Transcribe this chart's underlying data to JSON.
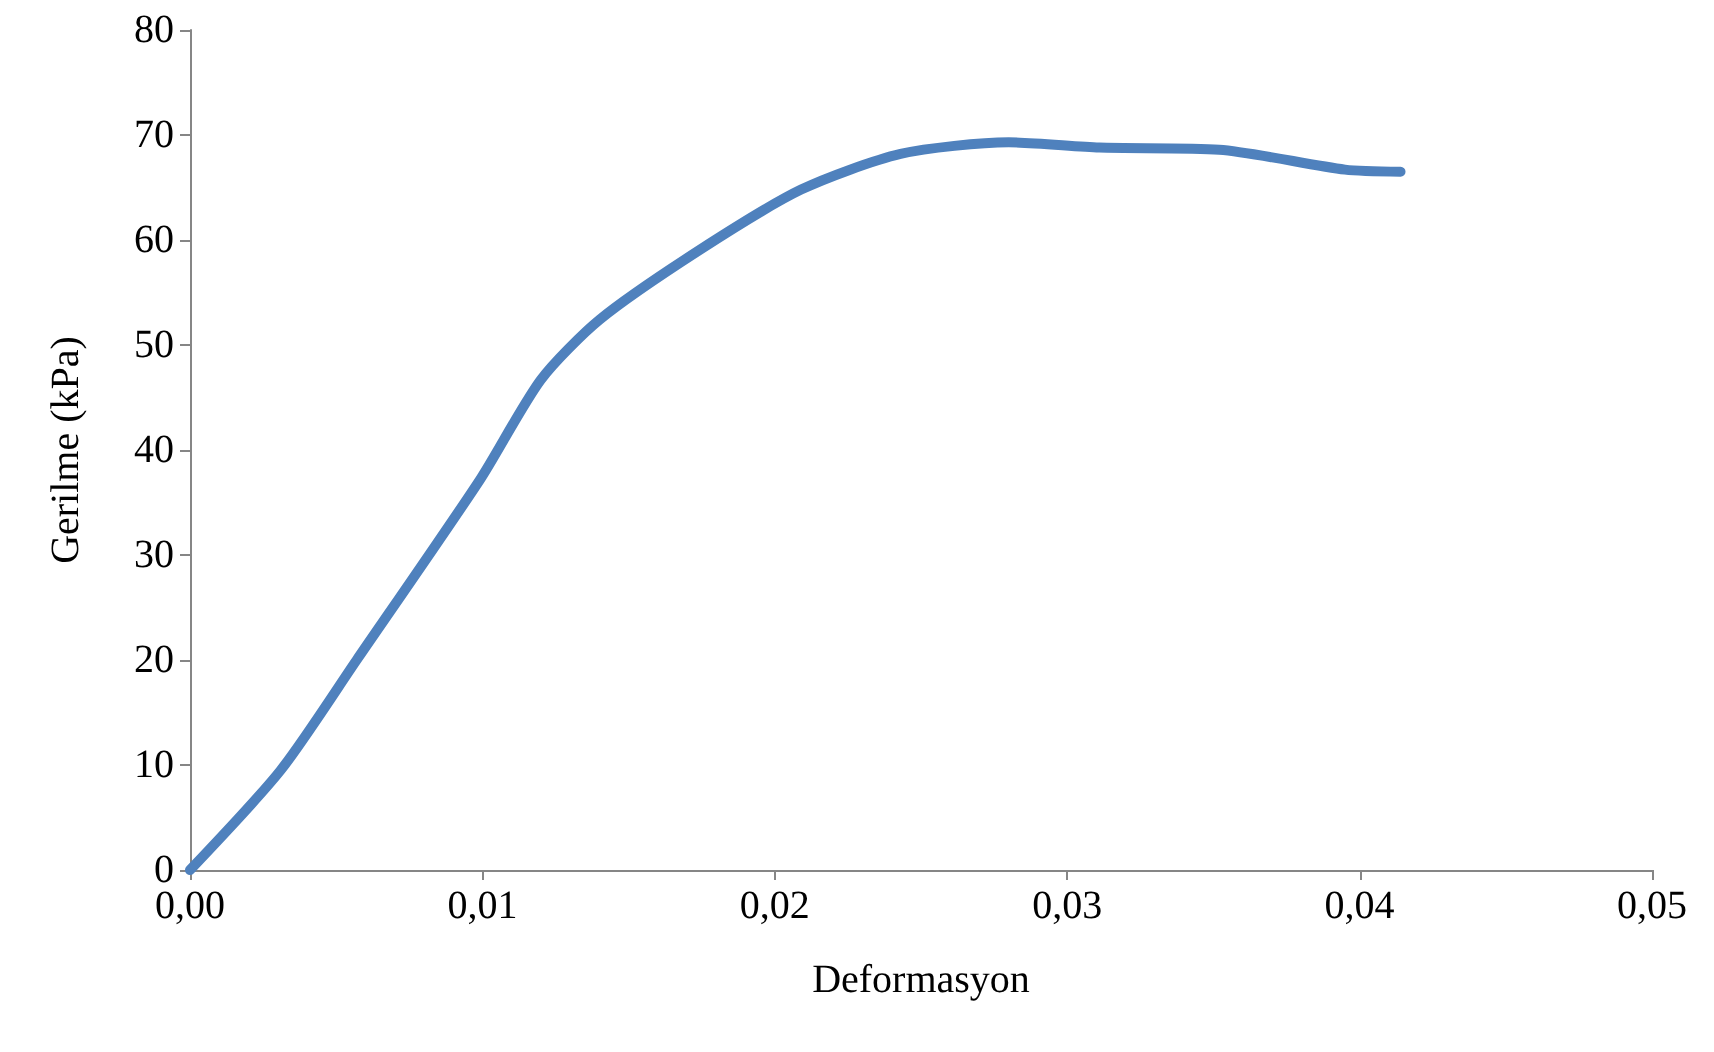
{
  "chart_data": {
    "type": "line",
    "xlabel": "Deformasyon",
    "ylabel": "Gerilme (kPa)",
    "x": [
      0,
      0.0031,
      0.0057,
      0.0099,
      0.012,
      0.014,
      0.0174,
      0.0209,
      0.0243,
      0.028,
      0.0311,
      0.0352,
      0.0395,
      0.0414
    ],
    "series": [
      {
        "color": "#4f81bd",
        "values": [
          0,
          9.5,
          20,
          37.1,
          46.7,
          52.4,
          59,
          64.8,
          68.2,
          69.3,
          68.8,
          68.6,
          66.7,
          66.5
        ]
      }
    ],
    "xlim": [
      0,
      0.05
    ],
    "xticks": [
      {
        "value": 0,
        "label": "0,00"
      },
      {
        "value": 0.01,
        "label": "0,01"
      },
      {
        "value": 0.02,
        "label": "0,02"
      },
      {
        "value": 0.03,
        "label": "0,03"
      },
      {
        "value": 0.04,
        "label": "0,04"
      },
      {
        "value": 0.05,
        "label": "0,05"
      }
    ],
    "ylim": [
      0,
      80
    ],
    "yticks": [
      0,
      10,
      20,
      30,
      40,
      50,
      60,
      70,
      80
    ],
    "grid": false,
    "marker": "none",
    "line_style": "solid"
  }
}
